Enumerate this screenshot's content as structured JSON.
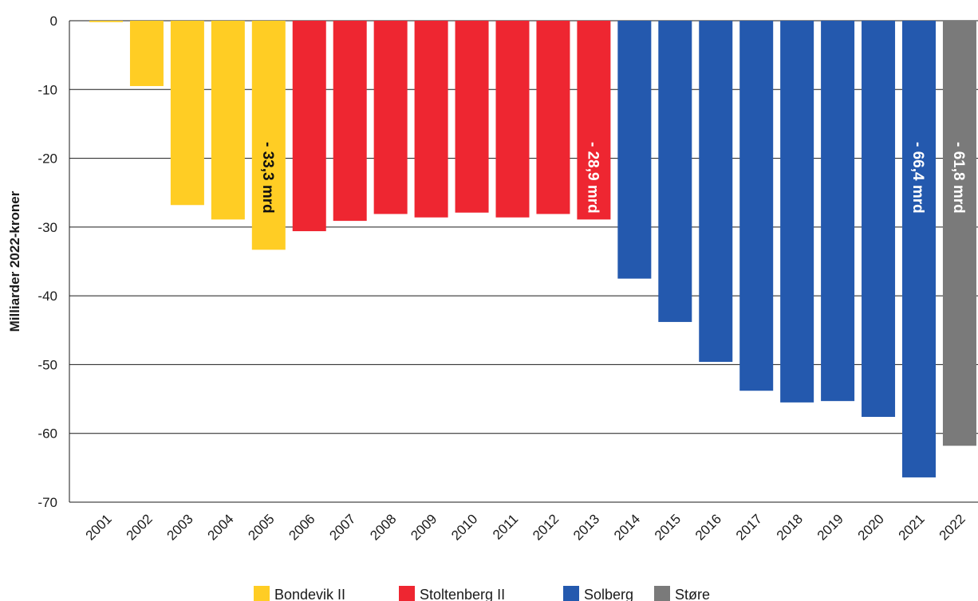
{
  "chart_data": {
    "type": "bar",
    "ylabel": "Milliarder 2022-kroner",
    "ylim": [
      -70,
      0
    ],
    "yticks": [
      0,
      -10,
      -20,
      -30,
      -40,
      -50,
      -60,
      -70
    ],
    "categories": [
      "2001",
      "2002",
      "2003",
      "2004",
      "2005",
      "2006",
      "2007",
      "2008",
      "2009",
      "2010",
      "2011",
      "2012",
      "2013",
      "2014",
      "2015",
      "2016",
      "2017",
      "2018",
      "2019",
      "2020",
      "2021",
      "2022"
    ],
    "values": [
      -0.2,
      -9.5,
      -26.8,
      -28.9,
      -33.3,
      -30.6,
      -29.1,
      -28.1,
      -28.6,
      -27.9,
      -28.6,
      -28.1,
      -28.9,
      -37.5,
      -43.8,
      -49.6,
      -53.8,
      -55.5,
      -55.3,
      -57.6,
      -66.4,
      -61.8
    ],
    "groups": [
      "Bondevik II",
      "Bondevik II",
      "Bondevik II",
      "Bondevik II",
      "Bondevik II",
      "Stoltenberg II",
      "Stoltenberg II",
      "Stoltenberg II",
      "Stoltenberg II",
      "Stoltenberg II",
      "Stoltenberg II",
      "Stoltenberg II",
      "Stoltenberg II",
      "Solberg",
      "Solberg",
      "Solberg",
      "Solberg",
      "Solberg",
      "Solberg",
      "Solberg",
      "Solberg",
      "Støre"
    ],
    "legend": [
      {
        "name": "Bondevik II",
        "color": "#FFCD24"
      },
      {
        "name": "Stoltenberg II",
        "color": "#EE2631"
      },
      {
        "name": "Solberg",
        "color": "#2459AE"
      },
      {
        "name": "Støre",
        "color": "#7A7A7A"
      }
    ],
    "legend_position": "bottom-center",
    "grid": "horizontal",
    "annotations": [
      {
        "category": "2005",
        "text": "- 33,3 mrd",
        "text_color": "#111111"
      },
      {
        "category": "2013",
        "text": "- 28,9 mrd",
        "text_color": "#ffffff"
      },
      {
        "category": "2021",
        "text": "- 66,4 mrd",
        "text_color": "#ffffff"
      },
      {
        "category": "2022",
        "text": "- 61,8 mrd",
        "text_color": "#ffffff"
      }
    ]
  }
}
